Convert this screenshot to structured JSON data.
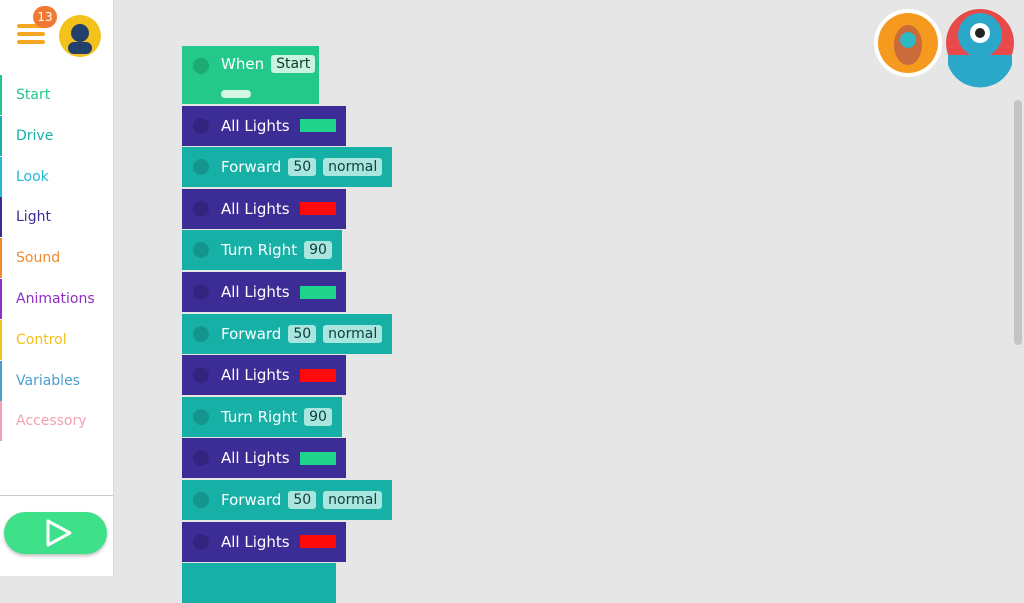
{
  "notification_count": "13",
  "categories": [
    {
      "label": "Start",
      "color": "#22c98a"
    },
    {
      "label": "Drive",
      "color": "#17b0a6"
    },
    {
      "label": "Look",
      "color": "#22b8d6"
    },
    {
      "label": "Light",
      "color": "#3c2c96"
    },
    {
      "label": "Sound",
      "color": "#f08a2c"
    },
    {
      "label": "Animations",
      "color": "#8e2ec4"
    },
    {
      "label": "Control",
      "color": "#f2c21a"
    },
    {
      "label": "Variables",
      "color": "#4a9fd0"
    },
    {
      "label": "Accessory",
      "color": "#f4a0b4"
    }
  ],
  "blocks": [
    {
      "kind": "start",
      "label": "When",
      "params": [
        "Start"
      ]
    },
    {
      "kind": "light",
      "label": "All Lights",
      "swatch": "#1fd38a"
    },
    {
      "kind": "drive",
      "label": "Forward",
      "params": [
        50,
        "normal"
      ]
    },
    {
      "kind": "light",
      "label": "All Lights",
      "swatch": "#ff0a0a"
    },
    {
      "kind": "drive",
      "label": "Turn Right",
      "params": [
        90
      ]
    },
    {
      "kind": "light",
      "label": "All Lights",
      "swatch": "#1fd38a"
    },
    {
      "kind": "drive",
      "label": "Forward",
      "params": [
        50,
        "normal"
      ]
    },
    {
      "kind": "light",
      "label": "All Lights",
      "swatch": "#ff0a0a"
    },
    {
      "kind": "drive",
      "label": "Turn Right",
      "params": [
        90
      ]
    },
    {
      "kind": "light",
      "label": "All Lights",
      "swatch": "#1fd38a"
    },
    {
      "kind": "drive",
      "label": "Forward",
      "params": [
        50,
        "normal"
      ]
    },
    {
      "kind": "light",
      "label": "All Lights",
      "swatch": "#ff0a0a"
    }
  ]
}
